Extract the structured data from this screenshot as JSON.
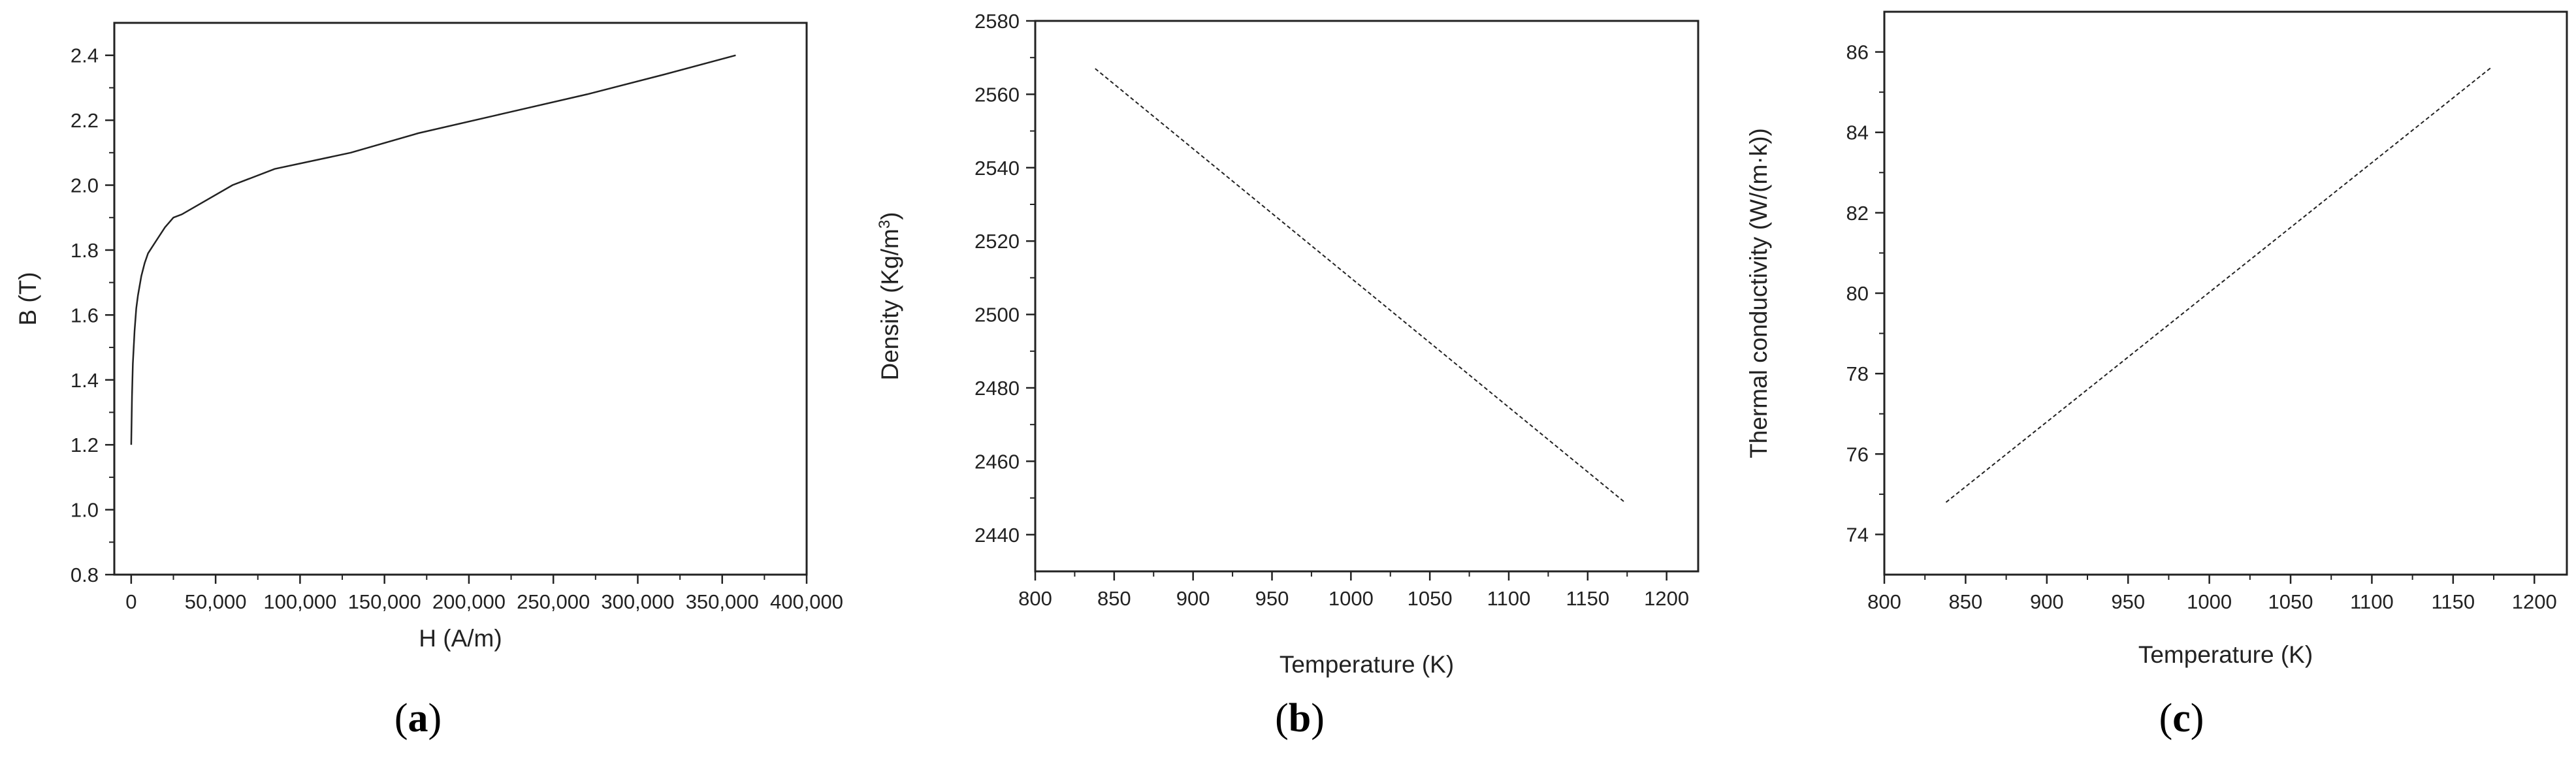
{
  "chart_data": [
    {
      "type": "line",
      "panel": "(a)",
      "panel_letter": "a",
      "xlabel": "H (A/m)",
      "ylabel": "B (T)",
      "xlim": [
        -10000,
        400000
      ],
      "ylim": [
        0.8,
        2.5
      ],
      "x_ticks": [
        0,
        50000,
        100000,
        150000,
        200000,
        250000,
        300000,
        350000,
        400000
      ],
      "x_tick_labels": [
        "0",
        "50,000",
        "100,000",
        "150,000",
        "200,000",
        "250,000",
        "300,000",
        "350,000",
        "400,000"
      ],
      "y_ticks": [
        0.8,
        1.0,
        1.2,
        1.4,
        1.6,
        1.8,
        2.0,
        2.2,
        2.4
      ],
      "y_tick_labels": [
        "0.8",
        "1.0",
        "1.2",
        "1.4",
        "1.6",
        "1.8",
        "2.0",
        "2.2",
        "2.4"
      ],
      "line_style": "solid",
      "series": [
        {
          "x": [
            0,
            500,
            1000,
            2000,
            3000,
            4000,
            6000,
            8000,
            10000,
            15000,
            20000,
            25000,
            30000,
            60000,
            85000,
            130000,
            170000,
            220000,
            270000,
            315000,
            358000
          ],
          "y": [
            1.2,
            1.35,
            1.45,
            1.55,
            1.62,
            1.66,
            1.72,
            1.76,
            1.79,
            1.83,
            1.87,
            1.9,
            1.91,
            2.0,
            2.05,
            2.1,
            2.16,
            2.22,
            2.28,
            2.34,
            2.4
          ]
        }
      ],
      "grid": false
    },
    {
      "type": "line",
      "panel": "(b)",
      "panel_letter": "b",
      "xlabel": "Temperature (K)",
      "ylabel_base": "Density (Kg/m",
      "ylabel_sup": "3",
      "ylabel_end": ")",
      "xlim": [
        800,
        1220
      ],
      "ylim": [
        2430,
        2580
      ],
      "x_ticks": [
        800,
        850,
        900,
        950,
        1000,
        1050,
        1100,
        1150,
        1200
      ],
      "x_tick_labels": [
        "800",
        "850",
        "900",
        "950",
        "1000",
        "1050",
        "1100",
        "1150",
        "1200"
      ],
      "y_ticks": [
        2440,
        2460,
        2480,
        2500,
        2520,
        2540,
        2560,
        2580
      ],
      "y_tick_labels": [
        "2440",
        "2460",
        "2480",
        "2500",
        "2520",
        "2540",
        "2560",
        "2580"
      ],
      "line_style": "dashed",
      "series": [
        {
          "x": [
            838,
            1173
          ],
          "y": [
            2567,
            2449
          ]
        }
      ],
      "grid": false
    },
    {
      "type": "line",
      "panel": "(c)",
      "panel_letter": "c",
      "xlabel": "Temperature (K)",
      "ylabel": "Thermal conductivity (W/(m·k))",
      "xlim": [
        800,
        1220
      ],
      "ylim": [
        73,
        87
      ],
      "x_ticks": [
        800,
        850,
        900,
        950,
        1000,
        1050,
        1100,
        1150,
        1200
      ],
      "x_tick_labels": [
        "800",
        "850",
        "900",
        "950",
        "1000",
        "1050",
        "1100",
        "1150",
        "1200"
      ],
      "y_ticks": [
        74,
        76,
        78,
        80,
        82,
        84,
        86
      ],
      "y_tick_labels": [
        "74",
        "76",
        "78",
        "80",
        "82",
        "84",
        "86"
      ],
      "line_style": "dashed",
      "series": [
        {
          "x": [
            838,
            1173
          ],
          "y": [
            74.8,
            85.6
          ]
        }
      ],
      "grid": false
    }
  ]
}
